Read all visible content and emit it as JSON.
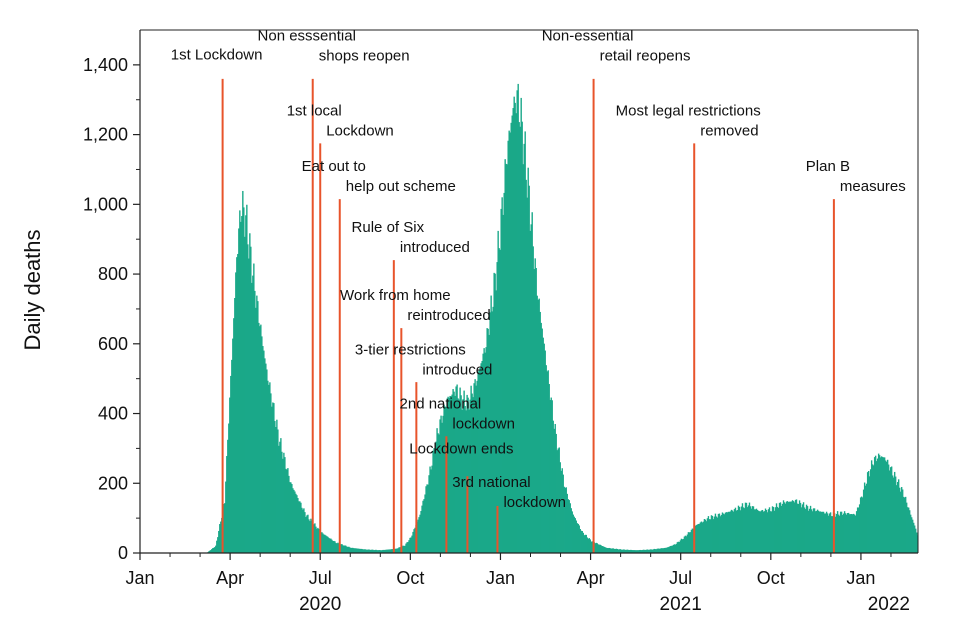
{
  "chart_data": {
    "type": "bar",
    "title": "",
    "ylabel": "Daily deaths",
    "xlabel": "",
    "ylim": [
      0,
      1500
    ],
    "y_ticks": [
      {
        "value": 0,
        "label": "0"
      },
      {
        "value": 200,
        "label": "200"
      },
      {
        "value": 400,
        "label": "400"
      },
      {
        "value": 600,
        "label": "600"
      },
      {
        "value": 800,
        "label": "800"
      },
      {
        "value": 1000,
        "label": "1,000"
      },
      {
        "value": 1200,
        "label": "1,200"
      },
      {
        "value": 1400,
        "label": "1,400"
      }
    ],
    "x_ticks": [
      {
        "month": 0,
        "label": "Jan"
      },
      {
        "month": 3,
        "label": "Apr"
      },
      {
        "month": 6,
        "label": "Jul"
      },
      {
        "month": 9,
        "label": "Oct"
      },
      {
        "month": 12,
        "label": "Jan"
      },
      {
        "month": 15,
        "label": "Apr"
      },
      {
        "month": 18,
        "label": "Jul"
      },
      {
        "month": 21,
        "label": "Oct"
      },
      {
        "month": 24,
        "label": "Jan"
      }
    ],
    "years": [
      {
        "month": 6,
        "label": "2020"
      },
      {
        "month": 18,
        "label": "2021"
      },
      {
        "month": 25,
        "label": "2022"
      }
    ],
    "x_unit": "months since Jan 2020",
    "xlim": [
      0,
      25.9
    ],
    "bar_color": "#1aa889",
    "series": [
      {
        "name": "Daily deaths",
        "points": [
          [
            0,
            0
          ],
          [
            2.2,
            0
          ],
          [
            2.5,
            20
          ],
          [
            2.8,
            150
          ],
          [
            3.0,
            500
          ],
          [
            3.2,
            850
          ],
          [
            3.35,
            1000
          ],
          [
            3.5,
            960
          ],
          [
            3.8,
            760
          ],
          [
            4.2,
            520
          ],
          [
            4.6,
            330
          ],
          [
            5.0,
            200
          ],
          [
            5.5,
            110
          ],
          [
            6.0,
            60
          ],
          [
            6.5,
            30
          ],
          [
            7.0,
            15
          ],
          [
            7.5,
            10
          ],
          [
            8.0,
            8
          ],
          [
            8.5,
            12
          ],
          [
            8.8,
            22
          ],
          [
            9.0,
            45
          ],
          [
            9.3,
            110
          ],
          [
            9.6,
            220
          ],
          [
            9.9,
            350
          ],
          [
            10.2,
            440
          ],
          [
            10.5,
            470
          ],
          [
            10.7,
            440
          ],
          [
            10.9,
            430
          ],
          [
            11.2,
            500
          ],
          [
            11.5,
            600
          ],
          [
            11.8,
            780
          ],
          [
            12.0,
            950
          ],
          [
            12.2,
            1150
          ],
          [
            12.4,
            1280
          ],
          [
            12.55,
            1310
          ],
          [
            12.7,
            1220
          ],
          [
            12.9,
            1050
          ],
          [
            13.2,
            760
          ],
          [
            13.5,
            550
          ],
          [
            13.8,
            350
          ],
          [
            14.1,
            200
          ],
          [
            14.4,
            110
          ],
          [
            14.7,
            60
          ],
          [
            15.0,
            35
          ],
          [
            15.5,
            15
          ],
          [
            16.0,
            10
          ],
          [
            16.5,
            8
          ],
          [
            17.0,
            10
          ],
          [
            17.5,
            15
          ],
          [
            17.8,
            25
          ],
          [
            18.1,
            45
          ],
          [
            18.5,
            80
          ],
          [
            18.9,
            100
          ],
          [
            19.3,
            110
          ],
          [
            19.8,
            125
          ],
          [
            20.2,
            140
          ],
          [
            20.6,
            120
          ],
          [
            21.0,
            125
          ],
          [
            21.4,
            145
          ],
          [
            21.8,
            150
          ],
          [
            22.2,
            130
          ],
          [
            22.6,
            120
          ],
          [
            23.0,
            110
          ],
          [
            23.4,
            115
          ],
          [
            23.8,
            110
          ],
          [
            24.0,
            160
          ],
          [
            24.2,
            220
          ],
          [
            24.4,
            265
          ],
          [
            24.6,
            280
          ],
          [
            24.8,
            270
          ],
          [
            25.1,
            220
          ],
          [
            25.4,
            170
          ],
          [
            25.6,
            120
          ],
          [
            25.8,
            70
          ],
          [
            25.9,
            40
          ]
        ]
      }
    ],
    "annotations": [
      {
        "month": 2.75,
        "height": 1360,
        "lines": [
          "1st Lockdown"
        ],
        "label_top": 1415
      },
      {
        "month": 5.75,
        "height": 1360,
        "lines": [
          "Non esssential",
          "shops reopen"
        ],
        "label_top": 1470
      },
      {
        "month": 6.0,
        "height": 1175,
        "lines": [
          "1st local",
          "Lockdown"
        ],
        "label_top": 1255
      },
      {
        "month": 6.65,
        "height": 1015,
        "lines": [
          "Eat out to",
          "help out scheme"
        ],
        "label_top": 1095
      },
      {
        "month": 8.45,
        "height": 840,
        "lines": [
          "Rule of Six",
          "introduced"
        ],
        "label_top": 920
      },
      {
        "month": 8.7,
        "height": 645,
        "lines": [
          "Work from home",
          "reintroduced"
        ],
        "label_top": 725
      },
      {
        "month": 9.2,
        "height": 490,
        "lines": [
          "3-tier restrictions",
          "introduced"
        ],
        "label_top": 570
      },
      {
        "month": 10.2,
        "height": 335,
        "lines": [
          "2nd national",
          "lockdown"
        ],
        "label_top": 415
      },
      {
        "month": 10.9,
        "height": 220,
        "lines": [
          "Lockdown ends"
        ],
        "label_top": 285
      },
      {
        "month": 11.9,
        "height": 135,
        "lines": [
          "3rd national",
          "lockdown"
        ],
        "label_top": 190
      },
      {
        "month": 15.1,
        "height": 1360,
        "lines": [
          "Non-essential",
          "retail reopens"
        ],
        "label_top": 1470
      },
      {
        "month": 18.45,
        "height": 1175,
        "lines": [
          "Most legal restrictions",
          "removed"
        ],
        "label_top": 1255
      },
      {
        "month": 23.1,
        "height": 1015,
        "lines": [
          "Plan B",
          "measures"
        ],
        "label_top": 1095
      }
    ],
    "annotation_color": "#e8542b"
  }
}
